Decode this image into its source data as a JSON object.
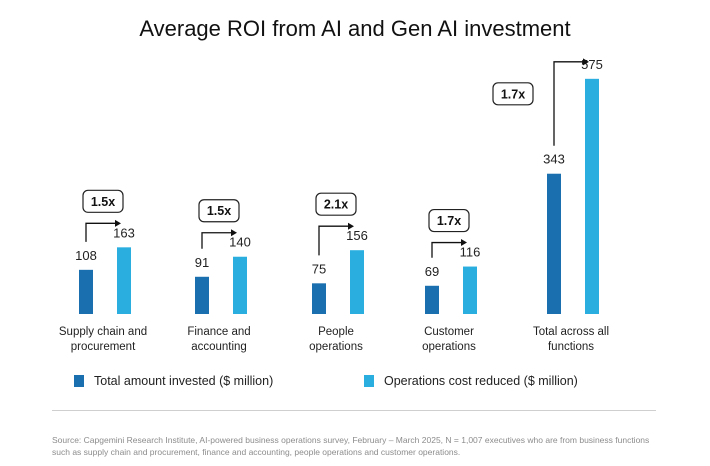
{
  "chart_data": {
    "type": "bar",
    "title": "Average ROI from AI and Gen AI investment",
    "categories": [
      {
        "line1": "Supply chain and",
        "line2": "procurement"
      },
      {
        "line1": "Finance and",
        "line2": "accounting"
      },
      {
        "line1": "People",
        "line2": "operations"
      },
      {
        "line1": "Customer",
        "line2": "operations"
      },
      {
        "line1": "Total across all",
        "line2": "functions"
      }
    ],
    "series": [
      {
        "name": "Total amount invested ($ million)",
        "color": "#1a6fae",
        "values": [
          108,
          91,
          75,
          69,
          343
        ]
      },
      {
        "name": "Operations cost reduced ($ million)",
        "color": "#2aaee0",
        "values": [
          163,
          140,
          156,
          116,
          575
        ]
      }
    ],
    "multipliers": [
      "1.5x",
      "1.5x",
      "2.1x",
      "1.7x",
      "1.7x"
    ],
    "ylim": [
      0,
      600
    ],
    "xlabel": "",
    "ylabel": "",
    "grid": false,
    "legend_position": "bottom"
  },
  "source_text": "Source: Capgemini Research Institute, AI-powered business operations survey, February – March 2025, N = 1,007 executives who are from business functions such as supply chain and procurement, finance and accounting, people operations and customer operations."
}
